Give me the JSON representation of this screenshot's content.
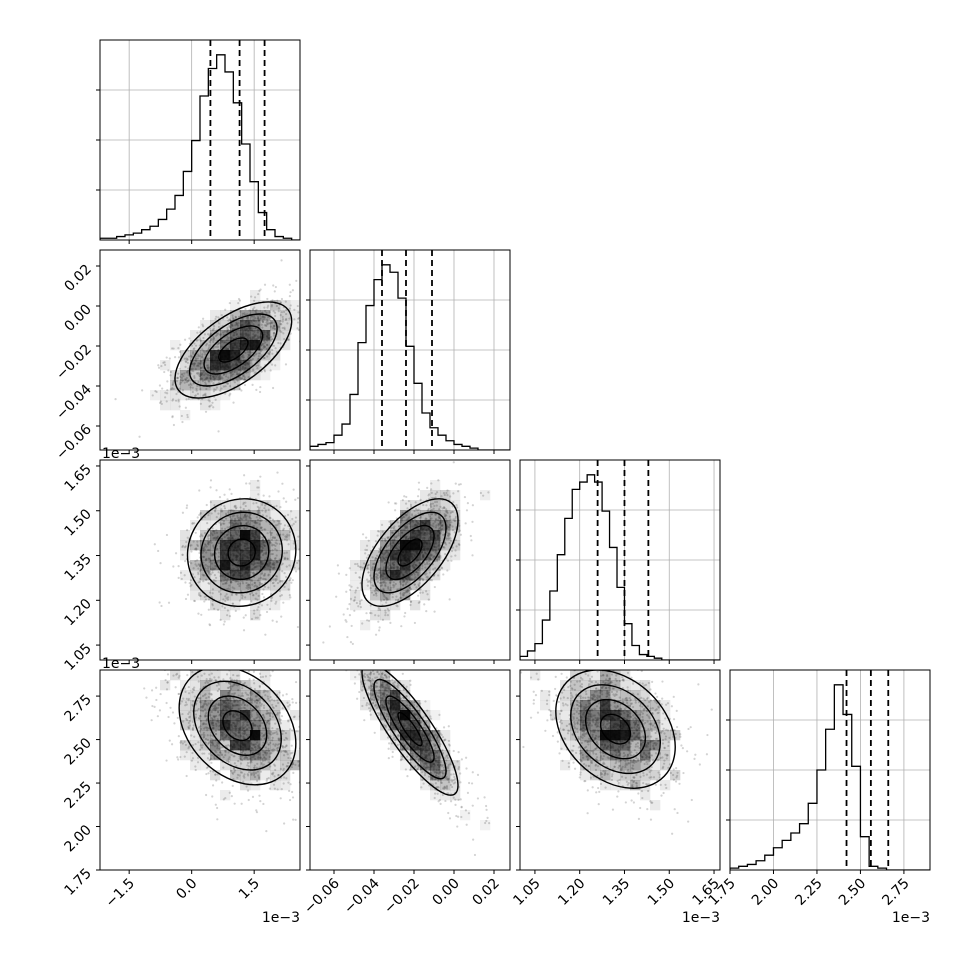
{
  "chart_data": {
    "type": "corner",
    "parameters": [
      {
        "id": "p0",
        "range": [
          -2.2,
          2.6
        ],
        "ticks": [
          -1.5,
          0.0,
          1.5
        ],
        "tick_labels": [
          "−1.5",
          "0.0",
          "1.5"
        ],
        "offset_label": "1e−3",
        "quantiles": [
          0.45,
          1.15,
          1.75
        ]
      },
      {
        "id": "p1",
        "range": [
          -0.072,
          0.028
        ],
        "ticks": [
          -0.06,
          -0.04,
          -0.02,
          0.0,
          0.02
        ],
        "tick_labels": [
          "−0.06",
          "−0.04",
          "−0.02",
          "0.00",
          "0.02"
        ],
        "offset_label": "",
        "quantiles": [
          -0.036,
          -0.024,
          -0.011
        ]
      },
      {
        "id": "p2",
        "range": [
          1.0,
          1.67
        ],
        "ticks": [
          1.05,
          1.2,
          1.35,
          1.5,
          1.65
        ],
        "tick_labels": [
          "1.05",
          "1.20",
          "1.35",
          "1.50",
          "1.65"
        ],
        "offset_label": "1e−3",
        "quantiles": [
          1.26,
          1.35,
          1.43
        ]
      },
      {
        "id": "p3",
        "range": [
          1.75,
          2.9
        ],
        "ticks": [
          1.75,
          2.0,
          2.25,
          2.5,
          2.75
        ],
        "tick_labels": [
          "1.75",
          "2.00",
          "2.25",
          "2.50",
          "2.75"
        ],
        "offset_label": "1e−3",
        "quantiles": [
          2.42,
          2.56,
          2.66
        ]
      }
    ],
    "histograms": [
      {
        "param": "p0",
        "bin_start": -2.2,
        "bin_width": 0.2,
        "counts": [
          1,
          1,
          2,
          3,
          4,
          6,
          8,
          12,
          18,
          26,
          40,
          58,
          84,
          100,
          108,
          98,
          80,
          56,
          34,
          16,
          6,
          2,
          1,
          0
        ]
      },
      {
        "param": "p1",
        "bin_start": -0.072,
        "bin_width": 0.004,
        "counts": [
          2,
          3,
          4,
          8,
          14,
          30,
          58,
          78,
          92,
          100,
          96,
          82,
          56,
          36,
          20,
          12,
          8,
          5,
          3,
          2,
          1,
          0,
          0,
          0,
          0
        ]
      },
      {
        "param": "p2",
        "bin_start": 1.0,
        "bin_width": 0.025,
        "counts": [
          2,
          5,
          9,
          22,
          38,
          58,
          78,
          94,
          98,
          102,
          98,
          82,
          62,
          40,
          20,
          8,
          3,
          2,
          1,
          0,
          0,
          0,
          0,
          0,
          0,
          0,
          0
        ]
      },
      {
        "param": "p3",
        "bin_start": 1.75,
        "bin_width": 0.05,
        "counts": [
          1,
          2,
          3,
          5,
          8,
          12,
          16,
          20,
          25,
          36,
          54,
          76,
          100,
          84,
          56,
          18,
          2,
          1,
          0,
          0,
          0,
          0,
          0
        ]
      }
    ],
    "pairs": [
      {
        "x": "p0",
        "y": "p1",
        "mean": [
          1.0,
          -0.022
        ],
        "sd": [
          0.7,
          0.012
        ],
        "rho": 0.6
      },
      {
        "x": "p0",
        "y": "p2",
        "mean": [
          1.2,
          1.36
        ],
        "sd": [
          0.65,
          0.09
        ],
        "rho": 0.05
      },
      {
        "x": "p1",
        "y": "p2",
        "mean": [
          -0.022,
          1.36
        ],
        "sd": [
          0.012,
          0.09
        ],
        "rho": 0.6
      },
      {
        "x": "p0",
        "y": "p3",
        "mean": [
          1.1,
          2.58
        ],
        "sd": [
          0.7,
          0.17
        ],
        "rho": -0.3
      },
      {
        "x": "p1",
        "y": "p3",
        "mean": [
          -0.022,
          2.56
        ],
        "sd": [
          0.012,
          0.19
        ],
        "rho": -0.85
      },
      {
        "x": "p2",
        "y": "p3",
        "mean": [
          1.32,
          2.56
        ],
        "sd": [
          0.1,
          0.17
        ],
        "rho": -0.3
      }
    ],
    "contour_levels_sigma": [
      0.5,
      1.0,
      1.5,
      2.0
    ],
    "grid": true,
    "scatter_color": "#808080",
    "density_color": "#000000",
    "quantile_line_style": "dashed"
  }
}
